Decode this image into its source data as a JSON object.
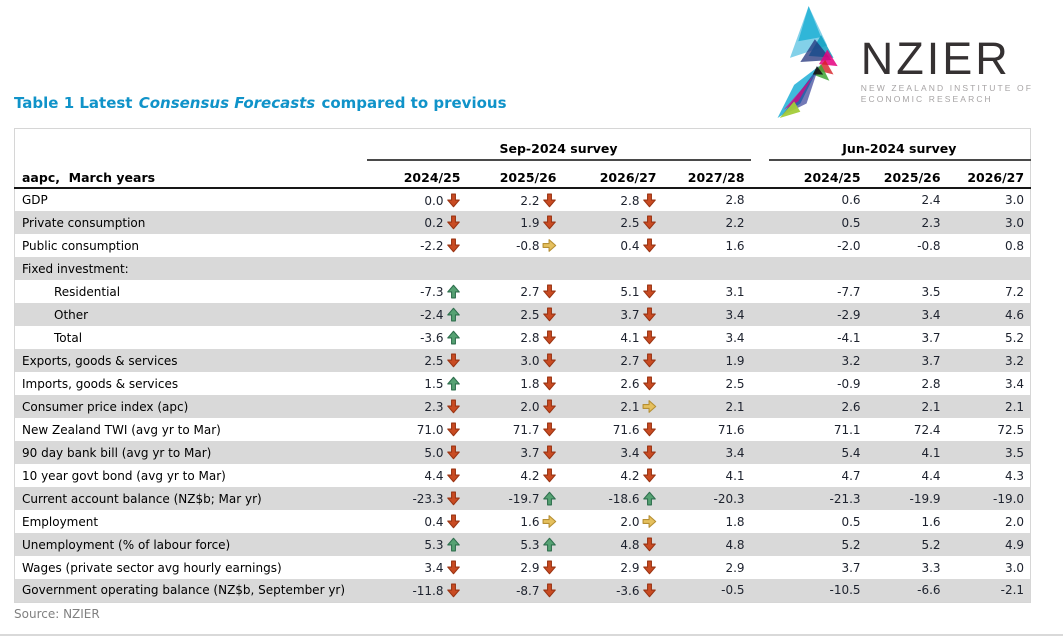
{
  "title": {
    "prefix": "Table 1 Latest ",
    "italic": "Consensus Forecasts",
    "suffix": " compared to previous"
  },
  "logo": {
    "wordmark": "NZIER",
    "subtitle_line1": "NEW ZEALAND INSTITUTE OF",
    "subtitle_line2": "ECONOMIC RESEARCH"
  },
  "source_note": "Source: NZIER",
  "colors": {
    "title_accent": "#1093c9",
    "row_shade": "#d9d9d9",
    "arrow_down_fill": "#c94b22",
    "arrow_down_stroke": "#9a3413",
    "arrow_up_fill": "#56a273",
    "arrow_up_stroke": "#2f6f4e",
    "arrow_right_fill": "#e5c05e",
    "arrow_right_stroke": "#b68f33"
  },
  "table": {
    "corner_label": "aapc,  March years",
    "groups": [
      {
        "label": "Sep-2024 survey"
      },
      {
        "label": "Jun-2024 survey"
      }
    ],
    "sep_columns": [
      "2024/25",
      "2025/26",
      "2026/27",
      "2027/28"
    ],
    "jun_columns": [
      "2024/25",
      "2025/26",
      "2026/27"
    ],
    "rows": [
      {
        "label": "GDP",
        "indent": false,
        "sep": [
          {
            "v": "0.0",
            "a": "down"
          },
          {
            "v": "2.2",
            "a": "down"
          },
          {
            "v": "2.8",
            "a": "down"
          },
          {
            "v": "2.8",
            "a": null
          }
        ],
        "jun": [
          "0.6",
          "2.4",
          "3.0"
        ]
      },
      {
        "label": "Private consumption",
        "indent": false,
        "sep": [
          {
            "v": "0.2",
            "a": "down"
          },
          {
            "v": "1.9",
            "a": "down"
          },
          {
            "v": "2.5",
            "a": "down"
          },
          {
            "v": "2.2",
            "a": null
          }
        ],
        "jun": [
          "0.5",
          "2.3",
          "3.0"
        ]
      },
      {
        "label": "Public consumption",
        "indent": false,
        "sep": [
          {
            "v": "-2.2",
            "a": "down"
          },
          {
            "v": "-0.8",
            "a": "right"
          },
          {
            "v": "0.4",
            "a": "down"
          },
          {
            "v": "1.6",
            "a": null
          }
        ],
        "jun": [
          "-2.0",
          "-0.8",
          "0.8"
        ]
      },
      {
        "label": "Fixed investment:",
        "indent": false,
        "sep": null,
        "jun": null
      },
      {
        "label": "Residential",
        "indent": true,
        "sep": [
          {
            "v": "-7.3",
            "a": "up"
          },
          {
            "v": "2.7",
            "a": "down"
          },
          {
            "v": "5.1",
            "a": "down"
          },
          {
            "v": "3.1",
            "a": null
          }
        ],
        "jun": [
          "-7.7",
          "3.5",
          "7.2"
        ]
      },
      {
        "label": "Other",
        "indent": true,
        "sep": [
          {
            "v": "-2.4",
            "a": "up"
          },
          {
            "v": "2.5",
            "a": "down"
          },
          {
            "v": "3.7",
            "a": "down"
          },
          {
            "v": "3.4",
            "a": null
          }
        ],
        "jun": [
          "-2.9",
          "3.4",
          "4.6"
        ]
      },
      {
        "label": "Total",
        "indent": true,
        "sep": [
          {
            "v": "-3.6",
            "a": "up"
          },
          {
            "v": "2.8",
            "a": "down"
          },
          {
            "v": "4.1",
            "a": "down"
          },
          {
            "v": "3.4",
            "a": null
          }
        ],
        "jun": [
          "-4.1",
          "3.7",
          "5.2"
        ]
      },
      {
        "label": "Exports, goods & services",
        "indent": false,
        "sep": [
          {
            "v": "2.5",
            "a": "down"
          },
          {
            "v": "3.0",
            "a": "down"
          },
          {
            "v": "2.7",
            "a": "down"
          },
          {
            "v": "1.9",
            "a": null
          }
        ],
        "jun": [
          "3.2",
          "3.7",
          "3.2"
        ]
      },
      {
        "label": "Imports, goods & services",
        "indent": false,
        "sep": [
          {
            "v": "1.5",
            "a": "up"
          },
          {
            "v": "1.8",
            "a": "down"
          },
          {
            "v": "2.6",
            "a": "down"
          },
          {
            "v": "2.5",
            "a": null
          }
        ],
        "jun": [
          "-0.9",
          "2.8",
          "3.4"
        ]
      },
      {
        "label": "Consumer price index (apc)",
        "indent": false,
        "sep": [
          {
            "v": "2.3",
            "a": "down"
          },
          {
            "v": "2.0",
            "a": "down"
          },
          {
            "v": "2.1",
            "a": "right"
          },
          {
            "v": "2.1",
            "a": null
          }
        ],
        "jun": [
          "2.6",
          "2.1",
          "2.1"
        ]
      },
      {
        "label": "New Zealand TWI (avg yr to Mar)",
        "indent": false,
        "sep": [
          {
            "v": "71.0",
            "a": "down"
          },
          {
            "v": "71.7",
            "a": "down"
          },
          {
            "v": "71.6",
            "a": "down"
          },
          {
            "v": "71.6",
            "a": null
          }
        ],
        "jun": [
          "71.1",
          "72.4",
          "72.5"
        ]
      },
      {
        "label": "90 day bank bill (avg yr to Mar)",
        "indent": false,
        "sep": [
          {
            "v": "5.0",
            "a": "down"
          },
          {
            "v": "3.7",
            "a": "down"
          },
          {
            "v": "3.4",
            "a": "down"
          },
          {
            "v": "3.4",
            "a": null
          }
        ],
        "jun": [
          "5.4",
          "4.1",
          "3.5"
        ]
      },
      {
        "label": "10 year govt bond (avg yr to Mar)",
        "indent": false,
        "sep": [
          {
            "v": "4.4",
            "a": "down"
          },
          {
            "v": "4.2",
            "a": "down"
          },
          {
            "v": "4.2",
            "a": "down"
          },
          {
            "v": "4.1",
            "a": null
          }
        ],
        "jun": [
          "4.7",
          "4.4",
          "4.3"
        ]
      },
      {
        "label": "Current account balance (NZ$b; Mar yr)",
        "indent": false,
        "sep": [
          {
            "v": "-23.3",
            "a": "down"
          },
          {
            "v": "-19.7",
            "a": "up"
          },
          {
            "v": "-18.6",
            "a": "up"
          },
          {
            "v": "-20.3",
            "a": null
          }
        ],
        "jun": [
          "-21.3",
          "-19.9",
          "-19.0"
        ]
      },
      {
        "label": "Employment",
        "indent": false,
        "sep": [
          {
            "v": "0.4",
            "a": "down"
          },
          {
            "v": "1.6",
            "a": "right"
          },
          {
            "v": "2.0",
            "a": "right"
          },
          {
            "v": "1.8",
            "a": null
          }
        ],
        "jun": [
          "0.5",
          "1.6",
          "2.0"
        ]
      },
      {
        "label": "Unemployment (% of labour force)",
        "indent": false,
        "sep": [
          {
            "v": "5.3",
            "a": "up"
          },
          {
            "v": "5.3",
            "a": "up"
          },
          {
            "v": "4.8",
            "a": "down"
          },
          {
            "v": "4.8",
            "a": null
          }
        ],
        "jun": [
          "5.2",
          "5.2",
          "4.9"
        ]
      },
      {
        "label": "Wages (private sector avg hourly earnings)",
        "indent": false,
        "sep": [
          {
            "v": "3.4",
            "a": "down"
          },
          {
            "v": "2.9",
            "a": "down"
          },
          {
            "v": "2.9",
            "a": "down"
          },
          {
            "v": "2.9",
            "a": null
          }
        ],
        "jun": [
          "3.7",
          "3.3",
          "3.0"
        ]
      },
      {
        "label": "Government operating balance (NZ$b, September yr)",
        "indent": false,
        "sep": [
          {
            "v": "-11.8",
            "a": "down"
          },
          {
            "v": "-8.7",
            "a": "down"
          },
          {
            "v": "-3.6",
            "a": "down"
          },
          {
            "v": "-0.5",
            "a": null
          }
        ],
        "jun": [
          "-10.5",
          "-6.6",
          "-2.1"
        ]
      }
    ]
  }
}
